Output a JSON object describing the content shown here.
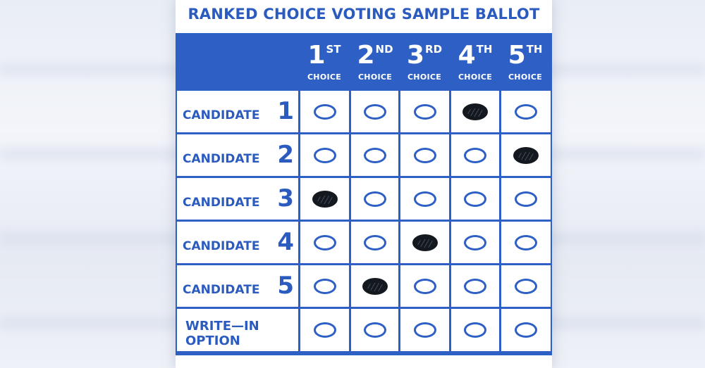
{
  "title": "RANKED CHOICE VOTING SAMPLE BALLOT",
  "choices": [
    {
      "num": "1",
      "sup": "ST",
      "word": "CHOICE"
    },
    {
      "num": "2",
      "sup": "ND",
      "word": "CHOICE"
    },
    {
      "num": "3",
      "sup": "RD",
      "word": "CHOICE"
    },
    {
      "num": "4",
      "sup": "TH",
      "word": "CHOICE"
    },
    {
      "num": "5",
      "sup": "TH",
      "word": "CHOICE"
    }
  ],
  "rows": [
    {
      "label": "CANDIDATE",
      "num": "1",
      "marked_choice": 4
    },
    {
      "label": "CANDIDATE",
      "num": "2",
      "marked_choice": 5
    },
    {
      "label": "CANDIDATE",
      "num": "3",
      "marked_choice": 1
    },
    {
      "label": "CANDIDATE",
      "num": "4",
      "marked_choice": 3
    },
    {
      "label": "CANDIDATE",
      "num": "5",
      "marked_choice": 2
    },
    {
      "label_line1": "WRITE—IN",
      "label_line2": "OPTION",
      "marked_choice": null
    }
  ],
  "colors": {
    "accent": "#2e5fc4",
    "text": "#2b5bbf",
    "mark": "#14181f"
  }
}
